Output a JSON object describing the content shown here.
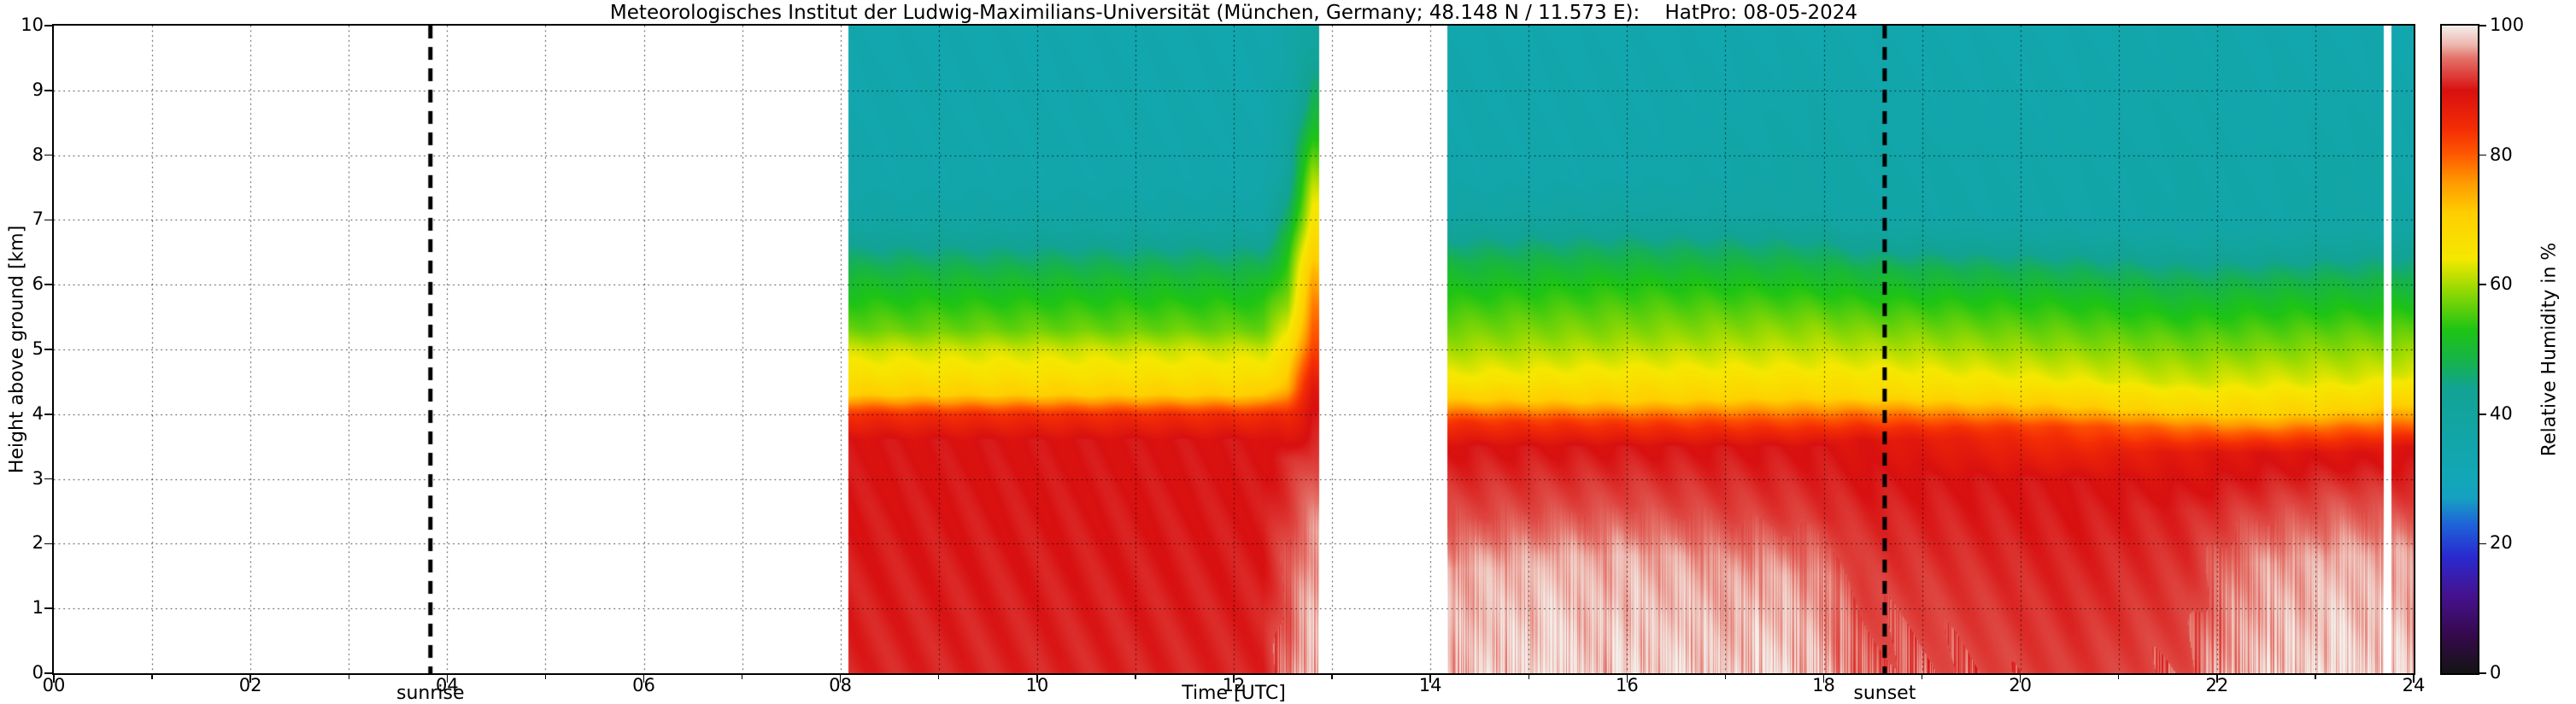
{
  "chart_data": {
    "type": "heatmap",
    "title": "Meteorologisches Institut der Ludwig-Maximilians-Universität (München, Germany; 48.148 N / 11.573 E):    HatPro: 08-05-2024",
    "xlabel": "Time [UTC]",
    "ylabel": "Height above ground [km]",
    "colorbar_label": "Relative Humidity in %",
    "xlim": [
      0,
      24
    ],
    "ylim": [
      0,
      10
    ],
    "zlim": [
      0,
      100
    ],
    "x_ticks": {
      "values": [
        0,
        2,
        4,
        6,
        8,
        10,
        12,
        14,
        16,
        18,
        20,
        22,
        24
      ],
      "labels": [
        "00",
        "02",
        "04",
        "06",
        "08",
        "10",
        "12",
        "14",
        "16",
        "18",
        "20",
        "22",
        "24"
      ]
    },
    "y_ticks": {
      "values": [
        0,
        1,
        2,
        3,
        4,
        5,
        6,
        7,
        8,
        9,
        10
      ],
      "labels": [
        "0",
        "1",
        "2",
        "3",
        "4",
        "5",
        "6",
        "7",
        "8",
        "9",
        "10"
      ]
    },
    "z_ticks": {
      "values": [
        0,
        20,
        40,
        60,
        80,
        100
      ],
      "labels": [
        "0",
        "20",
        "40",
        "60",
        "80",
        "100"
      ]
    },
    "grid": {
      "x_step_hours": 1,
      "y_step_km": 1,
      "style": "dotted"
    },
    "annotations": {
      "sunrise": {
        "label": "sunrise",
        "time_utc": 3.83
      },
      "sunset": {
        "label": "sunset",
        "time_utc": 18.62
      }
    },
    "colormap_stops": [
      [
        0,
        "#141414"
      ],
      [
        6,
        "#36094e"
      ],
      [
        12,
        "#45128f"
      ],
      [
        18,
        "#2a2ad0"
      ],
      [
        23,
        "#1e64d8"
      ],
      [
        27,
        "#16a0c2"
      ],
      [
        30,
        "#12a7b8"
      ],
      [
        44,
        "#12a394"
      ],
      [
        48,
        "#16b24e"
      ],
      [
        53,
        "#1ec414"
      ],
      [
        60,
        "#a6dc00"
      ],
      [
        64,
        "#f5e800"
      ],
      [
        71,
        "#ffcf00"
      ],
      [
        76,
        "#ff9800"
      ],
      [
        80,
        "#ff5a00"
      ],
      [
        84,
        "#f42d05"
      ],
      [
        90,
        "#d81010"
      ],
      [
        95,
        "#e4736a"
      ],
      [
        97,
        "#edb6ae"
      ],
      [
        99,
        "#f2dcd6"
      ],
      [
        100,
        "#f4efeb"
      ]
    ],
    "data_gaps_utc": [
      [
        0,
        8.08
      ],
      [
        12.87,
        14.17
      ],
      [
        23.7,
        23.77
      ]
    ],
    "segments": [
      {
        "t_start": 8.08,
        "t_end": 12.87,
        "profiles": [
          {
            "t": 8.1,
            "points": [
              [
                0,
                91
              ],
              [
                3.6,
                90
              ],
              [
                4.0,
                84
              ],
              [
                4.3,
                71
              ],
              [
                4.6,
                66
              ],
              [
                5.0,
                62
              ],
              [
                5.3,
                57
              ],
              [
                6.1,
                50
              ],
              [
                6.5,
                45
              ],
              [
                7.0,
                38
              ],
              [
                7.6,
                35
              ],
              [
                10,
                34
              ]
            ]
          },
          {
            "t": 12.3,
            "points": [
              [
                0,
                91
              ],
              [
                3.6,
                90
              ],
              [
                4.0,
                84
              ],
              [
                4.3,
                71
              ],
              [
                4.6,
                66
              ],
              [
                5.0,
                62
              ],
              [
                5.3,
                57
              ],
              [
                6.1,
                50
              ],
              [
                6.5,
                45
              ],
              [
                7.0,
                38
              ],
              [
                7.6,
                35
              ],
              [
                10,
                34
              ]
            ]
          },
          {
            "t": 12.55,
            "points": [
              [
                0,
                95
              ],
              [
                2.0,
                93
              ],
              [
                3.3,
                91
              ],
              [
                4.0,
                85
              ],
              [
                4.4,
                74
              ],
              [
                5.0,
                66
              ],
              [
                5.6,
                60
              ],
              [
                6.3,
                54
              ],
              [
                7.0,
                47
              ],
              [
                7.8,
                41
              ],
              [
                8.6,
                38
              ],
              [
                10,
                36
              ]
            ]
          },
          {
            "t": 12.8,
            "points": [
              [
                0,
                98
              ],
              [
                2.2,
                96
              ],
              [
                3.2,
                93
              ],
              [
                4.4,
                88
              ],
              [
                5.2,
                81
              ],
              [
                6.2,
                73
              ],
              [
                7.2,
                64
              ],
              [
                8.2,
                54
              ],
              [
                9.0,
                46
              ],
              [
                9.6,
                41
              ],
              [
                10,
                39
              ]
            ]
          }
        ]
      },
      {
        "t_start": 14.17,
        "t_end": 24.0,
        "profiles": [
          {
            "t": 14.25,
            "points": [
              [
                0,
                98
              ],
              [
                1.6,
                97
              ],
              [
                2.4,
                93
              ],
              [
                3.5,
                90
              ],
              [
                3.9,
                83
              ],
              [
                4.2,
                72
              ],
              [
                4.5,
                65
              ],
              [
                5.0,
                60
              ],
              [
                5.6,
                55
              ],
              [
                6.3,
                49
              ],
              [
                6.7,
                44
              ],
              [
                7.1,
                38
              ],
              [
                7.7,
                35
              ],
              [
                10,
                34
              ]
            ]
          },
          {
            "t": 16.0,
            "points": [
              [
                0,
                99
              ],
              [
                1.8,
                97
              ],
              [
                2.6,
                93
              ],
              [
                3.5,
                90
              ],
              [
                3.9,
                82
              ],
              [
                4.2,
                71
              ],
              [
                4.6,
                65
              ],
              [
                5.2,
                59
              ],
              [
                6.0,
                53
              ],
              [
                6.6,
                46
              ],
              [
                7.1,
                39
              ],
              [
                7.7,
                35
              ],
              [
                10,
                34
              ]
            ]
          },
          {
            "t": 17.9,
            "points": [
              [
                0,
                98
              ],
              [
                1.5,
                96
              ],
              [
                2.4,
                92
              ],
              [
                3.5,
                90
              ],
              [
                3.9,
                81
              ],
              [
                4.3,
                69
              ],
              [
                4.7,
                64
              ],
              [
                5.4,
                58
              ],
              [
                6.2,
                50
              ],
              [
                6.7,
                44
              ],
              [
                7.1,
                38
              ],
              [
                10,
                34
              ]
            ]
          },
          {
            "t": 18.4,
            "points": [
              [
                0,
                94
              ],
              [
                2.5,
                91
              ],
              [
                3.6,
                89
              ],
              [
                4.0,
                79
              ],
              [
                4.3,
                68
              ],
              [
                4.8,
                63
              ],
              [
                5.5,
                56
              ],
              [
                6.2,
                49
              ],
              [
                6.6,
                43
              ],
              [
                7.0,
                37
              ],
              [
                10,
                34
              ]
            ]
          },
          {
            "t": 20.5,
            "points": [
              [
                0,
                92
              ],
              [
                3.0,
                90
              ],
              [
                3.8,
                82
              ],
              [
                4.1,
                72
              ],
              [
                4.5,
                64
              ],
              [
                5.0,
                59
              ],
              [
                5.8,
                52
              ],
              [
                6.3,
                46
              ],
              [
                6.7,
                40
              ],
              [
                7.0,
                36
              ],
              [
                10,
                34
              ]
            ]
          },
          {
            "t": 21.7,
            "points": [
              [
                0,
                93
              ],
              [
                2.5,
                91
              ],
              [
                3.4,
                88
              ],
              [
                3.8,
                78
              ],
              [
                4.1,
                68
              ],
              [
                4.5,
                62
              ],
              [
                5.2,
                56
              ],
              [
                6.0,
                48
              ],
              [
                6.4,
                43
              ],
              [
                6.8,
                37
              ],
              [
                10,
                35
              ]
            ]
          },
          {
            "t": 22.4,
            "points": [
              [
                0,
                98
              ],
              [
                1.7,
                96
              ],
              [
                2.6,
                92
              ],
              [
                3.4,
                89
              ],
              [
                3.7,
                80
              ],
              [
                4.0,
                70
              ],
              [
                4.4,
                64
              ],
              [
                5.0,
                58
              ],
              [
                5.8,
                51
              ],
              [
                6.2,
                46
              ],
              [
                6.6,
                40
              ],
              [
                7.0,
                36
              ],
              [
                10,
                34
              ]
            ]
          },
          {
            "t": 23.3,
            "points": [
              [
                0,
                99
              ],
              [
                1.8,
                97
              ],
              [
                2.7,
                93
              ],
              [
                3.4,
                89
              ],
              [
                3.8,
                79
              ],
              [
                4.1,
                69
              ],
              [
                4.5,
                63
              ],
              [
                5.2,
                57
              ],
              [
                6.0,
                49
              ],
              [
                6.4,
                44
              ],
              [
                6.8,
                38
              ],
              [
                10,
                34
              ]
            ]
          },
          {
            "t": 24.0,
            "points": [
              [
                0,
                98
              ],
              [
                1.9,
                96
              ],
              [
                2.7,
                92
              ],
              [
                3.5,
                89
              ],
              [
                3.8,
                80
              ],
              [
                4.2,
                70
              ],
              [
                4.6,
                63
              ],
              [
                5.3,
                56
              ],
              [
                6.1,
                48
              ],
              [
                6.5,
                43
              ],
              [
                6.9,
                37
              ],
              [
                10,
                34
              ]
            ]
          }
        ]
      }
    ]
  }
}
